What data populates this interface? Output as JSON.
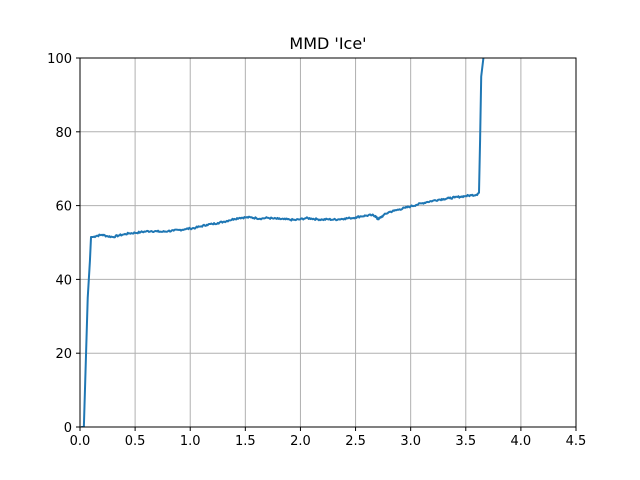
{
  "colors": {
    "series": "#1f77b4",
    "grid": "#b0b0b0",
    "background": "#ffffff"
  },
  "chart_data": {
    "type": "line",
    "title": "MMD 'Ice'",
    "xlabel": "",
    "ylabel": "",
    "xlim": [
      0.0,
      4.5
    ],
    "ylim": [
      0,
      100
    ],
    "grid": true,
    "x_ticks": [
      "0.0",
      "0.5",
      "1.0",
      "1.5",
      "2.0",
      "2.5",
      "3.0",
      "3.5",
      "4.0",
      "4.5"
    ],
    "y_ticks": [
      "0",
      "20",
      "40",
      "60",
      "80",
      "100"
    ],
    "series": [
      {
        "x": [
          0.02,
          0.035,
          0.05,
          0.07,
          0.09,
          0.1,
          0.12,
          0.15,
          0.2,
          0.25,
          0.3,
          0.35,
          0.4,
          0.45,
          0.5,
          0.55,
          0.6,
          0.65,
          0.7,
          0.75,
          0.8,
          0.85,
          0.9,
          0.95,
          1.0,
          1.05,
          1.1,
          1.15,
          1.2,
          1.25,
          1.3,
          1.35,
          1.4,
          1.45,
          1.5,
          1.55,
          1.6,
          1.65,
          1.7,
          1.75,
          1.8,
          1.85,
          1.9,
          1.95,
          2.0,
          2.05,
          2.1,
          2.15,
          2.2,
          2.25,
          2.3,
          2.35,
          2.4,
          2.45,
          2.5,
          2.55,
          2.6,
          2.65,
          2.68,
          2.7,
          2.72,
          2.75,
          2.8,
          2.85,
          2.9,
          2.95,
          3.0,
          3.05,
          3.1,
          3.15,
          3.2,
          3.25,
          3.3,
          3.35,
          3.4,
          3.45,
          3.5,
          3.55,
          3.6,
          3.62,
          3.63,
          3.64,
          3.66
        ],
        "y": [
          0,
          0,
          15,
          35,
          45,
          51.5,
          51.5,
          51.8,
          52.1,
          51.7,
          51.5,
          51.9,
          52.2,
          52.5,
          52.6,
          52.8,
          53.0,
          53.1,
          53.0,
          52.9,
          53.1,
          53.2,
          53.4,
          53.6,
          53.8,
          54.0,
          54.4,
          54.8,
          55.0,
          55.3,
          55.6,
          56.0,
          56.4,
          56.7,
          56.8,
          56.8,
          56.6,
          56.5,
          56.7,
          56.5,
          56.4,
          56.3,
          56.2,
          56.1,
          56.3,
          56.6,
          56.5,
          56.3,
          56.2,
          56.3,
          56.2,
          56.3,
          56.5,
          56.6,
          56.8,
          57.1,
          57.3,
          57.4,
          57.2,
          56.3,
          56.6,
          57.3,
          58.2,
          58.6,
          59.0,
          59.4,
          59.8,
          60.2,
          60.6,
          61.0,
          61.3,
          61.6,
          61.8,
          62.0,
          62.2,
          62.4,
          62.6,
          62.8,
          63.0,
          63.5,
          78,
          95,
          100
        ]
      }
    ]
  }
}
